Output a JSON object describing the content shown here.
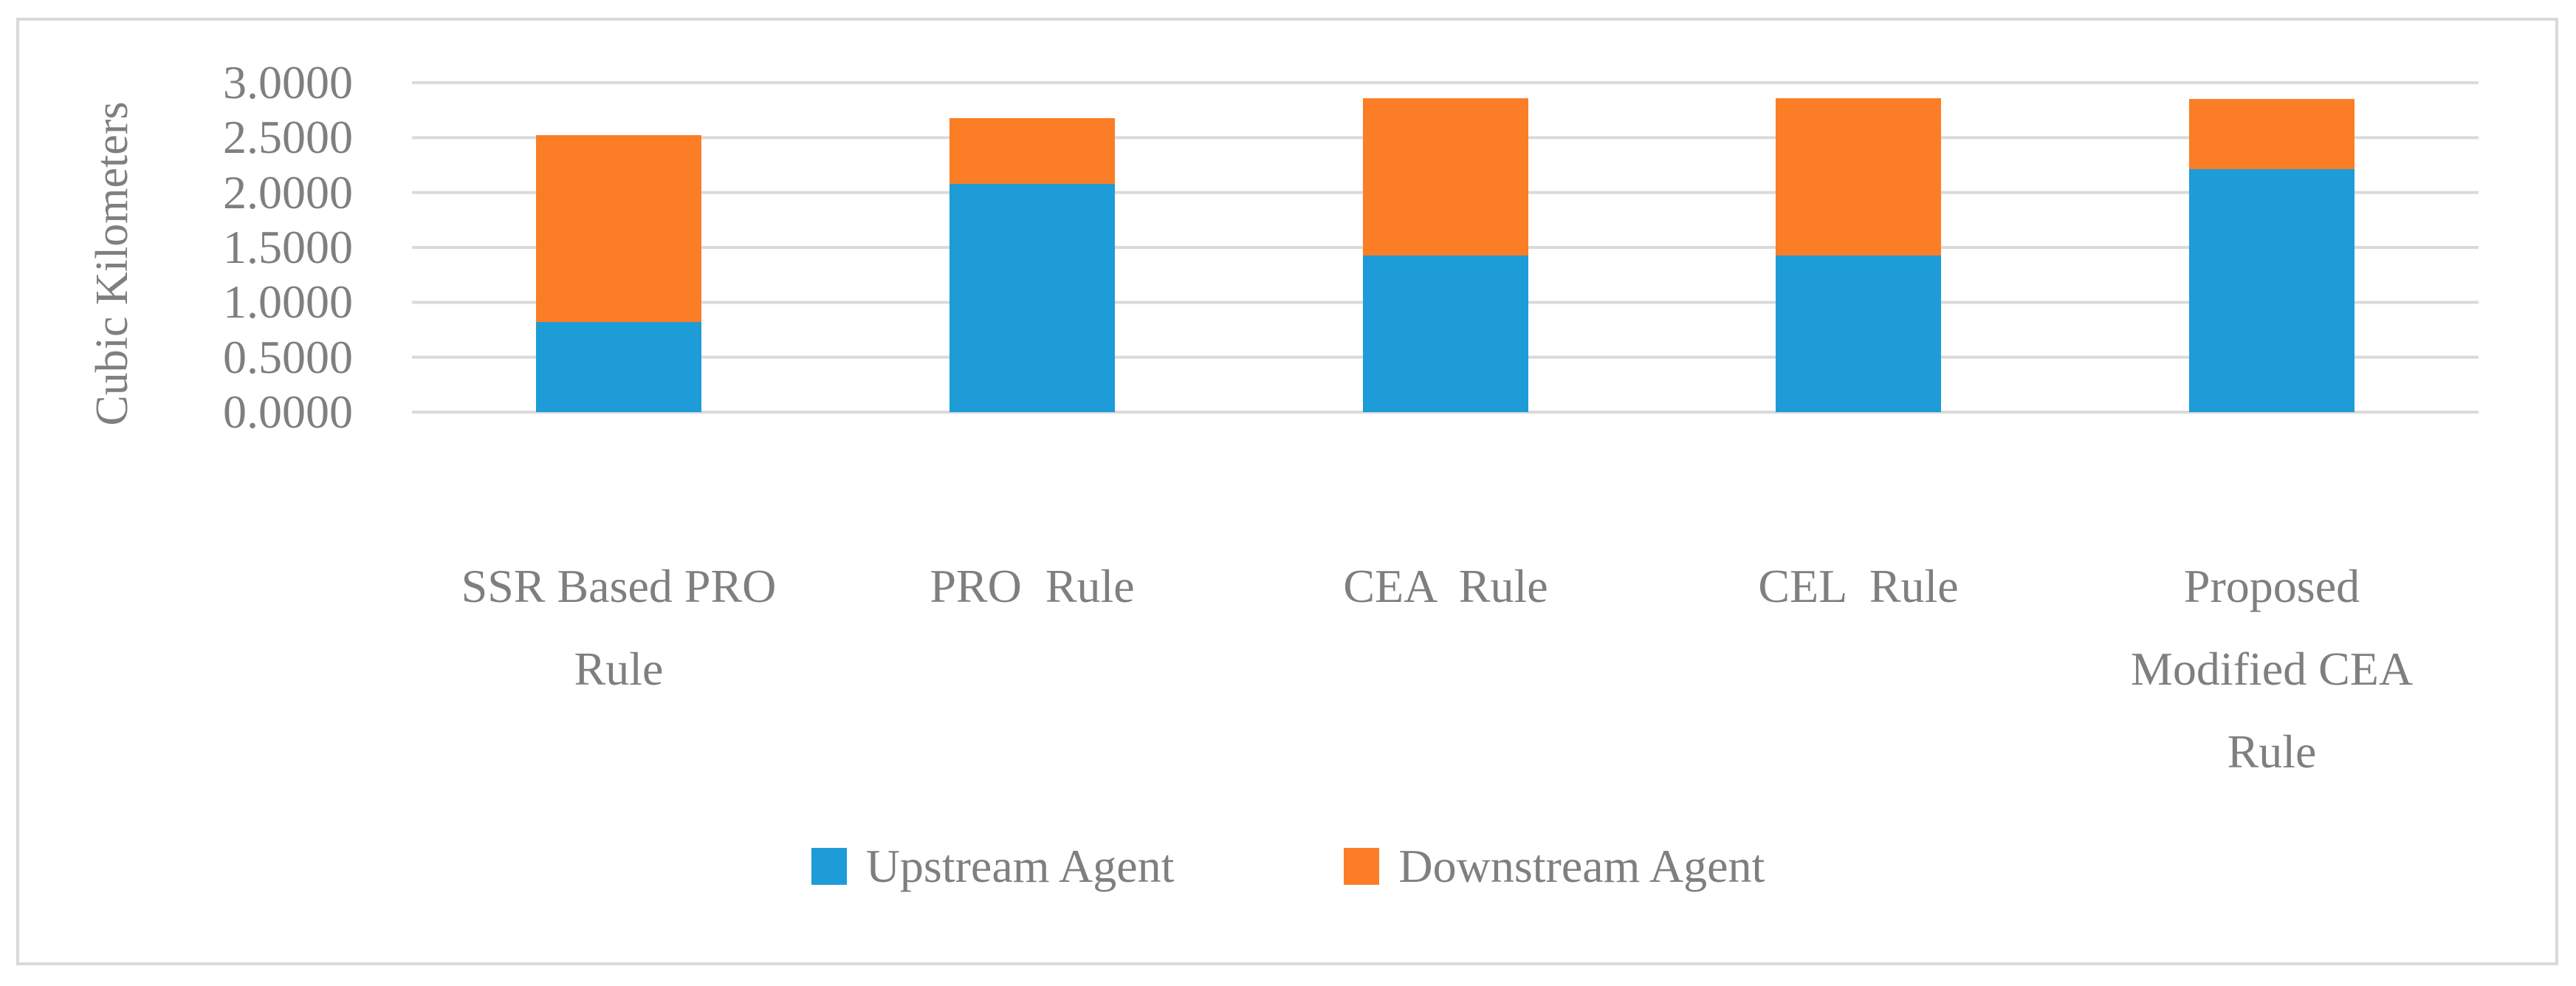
{
  "chart_data": {
    "type": "bar",
    "stacked": true,
    "orientation": "vertical",
    "categories": [
      "SSR Based PRO\nRule",
      "PRO  Rule",
      "CEA  Rule",
      "CEL  Rule",
      "Proposed\nModified CEA\nRule"
    ],
    "series": [
      {
        "name": "Upstream Agent",
        "color": "#1d9cd8",
        "values": [
          0.82,
          2.08,
          1.43,
          1.43,
          2.21
        ]
      },
      {
        "name": "Downstream Agent",
        "color": "#fb7d26",
        "values": [
          1.7,
          0.6,
          1.43,
          1.43,
          0.64
        ]
      }
    ],
    "title": "",
    "xlabel": "",
    "ylabel": "Cubic Kilometers",
    "ylim": [
      0,
      3
    ],
    "ytick_step": 0.5,
    "yticks": [
      "3.0000",
      "2.5000",
      "2.0000",
      "1.5000",
      "1.0000",
      "0.5000",
      "0.0000"
    ],
    "grid": true,
    "gridline_color": "#dadada",
    "legend_position": "bottom"
  },
  "colors": {
    "upstream": "#1d9cd8",
    "downstream": "#fb7d26",
    "text_gray": "#7f7f7f",
    "grid": "#dadada",
    "frame_border": "#d9d9d9",
    "background": "#ffffff"
  }
}
